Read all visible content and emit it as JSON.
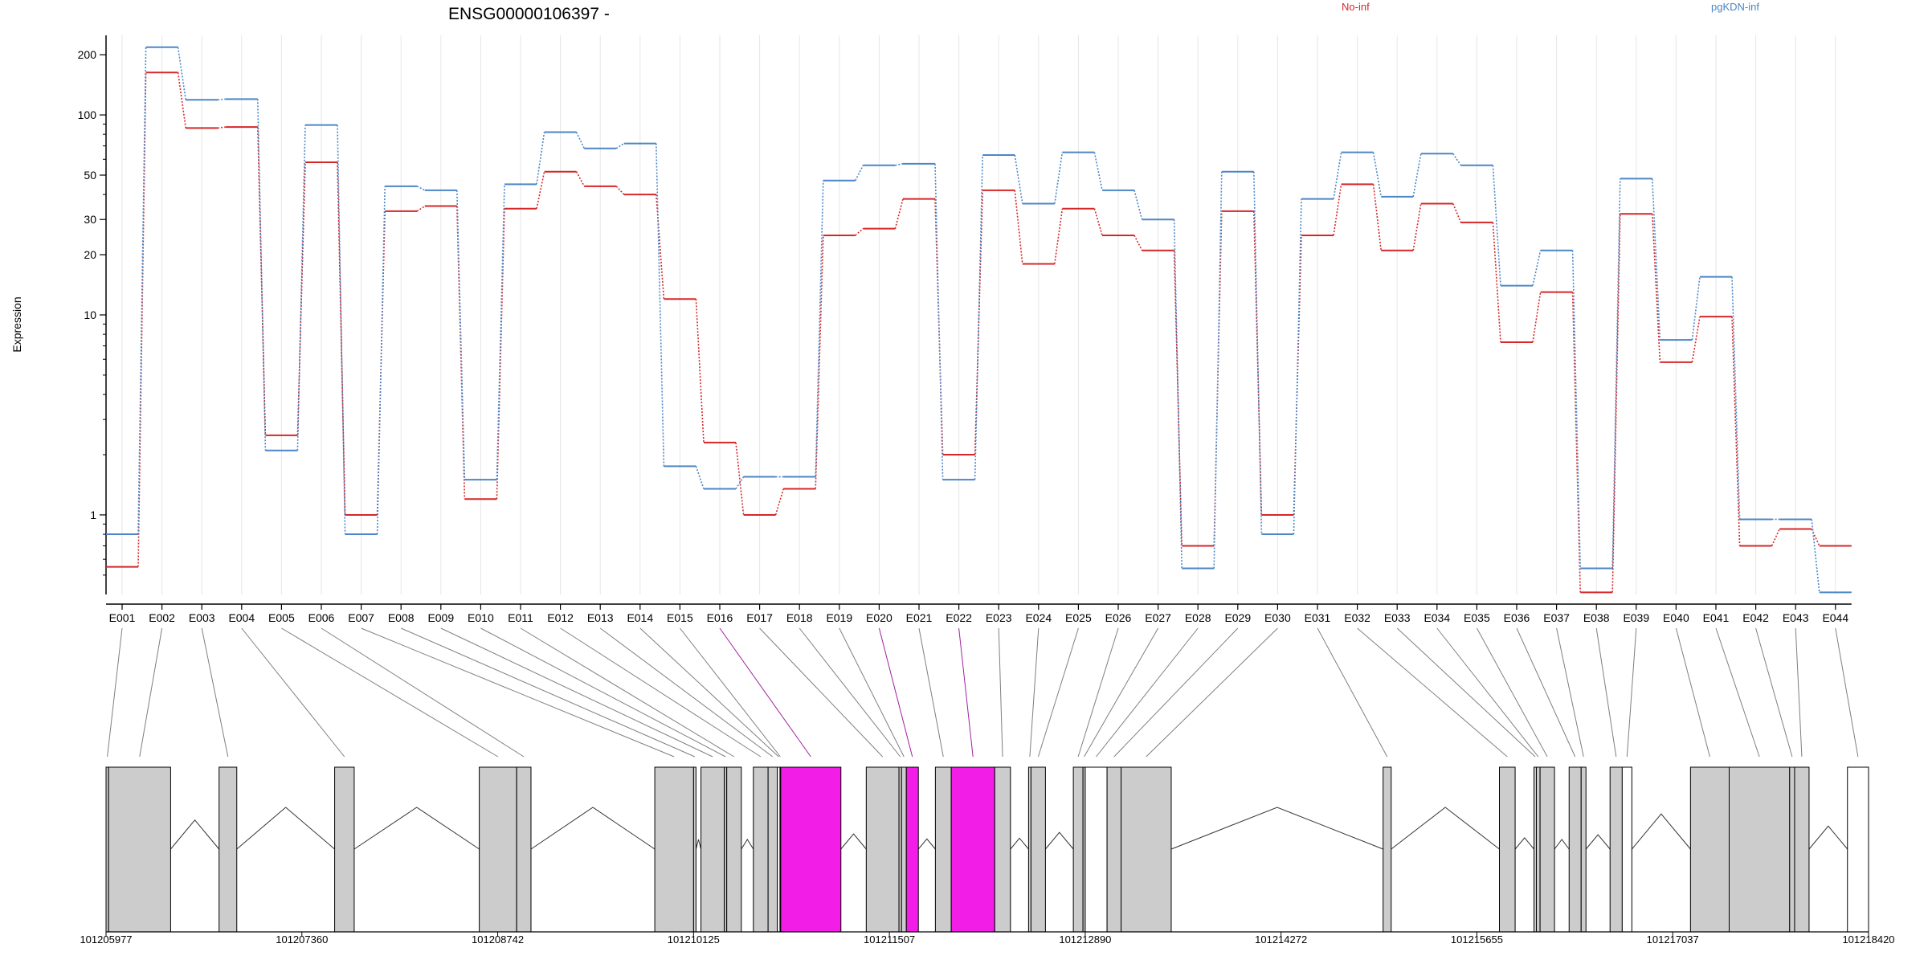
{
  "chart_data": {
    "type": "line",
    "title": "ENSG00000106397 -",
    "ylabel": "Expression",
    "yscale": "log",
    "ylim": [
      0.4,
      250
    ],
    "yticks": [
      {
        "value": 1,
        "label": "1"
      },
      {
        "value": 10,
        "label": "10"
      },
      {
        "value": 20,
        "label": "20"
      },
      {
        "value": 30,
        "label": "30"
      },
      {
        "value": 50,
        "label": "50"
      },
      {
        "value": 100,
        "label": "100"
      },
      {
        "value": 200,
        "label": "200"
      }
    ],
    "categories": [
      "E001",
      "E002",
      "E003",
      "E004",
      "E005",
      "E006",
      "E007",
      "E008",
      "E009",
      "E010",
      "E011",
      "E012",
      "E013",
      "E014",
      "E015",
      "E016",
      "E017",
      "E018",
      "E019",
      "E020",
      "E021",
      "E022",
      "E023",
      "E024",
      "E025",
      "E026",
      "E027",
      "E028",
      "E029",
      "E030",
      "E031",
      "E032",
      "E033",
      "E034",
      "E035",
      "E036",
      "E037",
      "E038",
      "E039",
      "E040",
      "E041",
      "E042",
      "E043",
      "E044"
    ],
    "legend_placement": "top-right",
    "series": [
      {
        "name": "No-inf",
        "color": "#d62728",
        "values": [
          0.55,
          163,
          86,
          87,
          2.5,
          58,
          1.0,
          33,
          35,
          1.2,
          34,
          52,
          44,
          40,
          12,
          2.3,
          1.0,
          1.35,
          25,
          27,
          38,
          2.0,
          42,
          18,
          34,
          25,
          21,
          0.7,
          33,
          1.0,
          25,
          45,
          21,
          36,
          29,
          7.3,
          13,
          0.41,
          32,
          5.8,
          9.8,
          0.7,
          0.85,
          0.7
        ]
      },
      {
        "name": "pgKDN-inf",
        "color": "#4c86c6",
        "values": [
          0.8,
          218,
          119,
          120,
          2.1,
          89,
          0.8,
          44,
          42,
          1.5,
          45,
          82,
          68,
          72,
          1.75,
          1.35,
          1.55,
          1.55,
          47,
          56,
          57,
          1.5,
          63,
          36,
          65,
          42,
          30,
          0.54,
          52,
          0.8,
          38,
          65,
          39,
          64,
          56,
          14,
          21,
          0.54,
          48,
          7.5,
          15.5,
          0.95,
          0.95,
          0.41
        ]
      }
    ],
    "highlighted_exons": [
      "E016",
      "E020",
      "E022"
    ]
  },
  "gene_model": {
    "coordinate_ticks": [
      "101205977",
      "101207360",
      "101208742",
      "101210125",
      "101211507",
      "101212890",
      "101214272",
      "101215655",
      "101217037",
      "101218420"
    ],
    "coord_start": 101205977,
    "coord_end": 101218420,
    "exons": [
      {
        "id": "E001",
        "start": 101205977,
        "end": 101205995,
        "fill": "#cccccc"
      },
      {
        "id": "E002",
        "start": 101205995,
        "end": 101206433,
        "fill": "#cccccc"
      },
      {
        "id": "E003",
        "start": 101206775,
        "end": 101206900,
        "fill": "#cccccc"
      },
      {
        "id": "E004",
        "start": 101207591,
        "end": 101207729,
        "fill": "#cccccc"
      },
      {
        "id": "E005",
        "start": 101208612,
        "end": 101208876,
        "fill": "#cccccc"
      },
      {
        "id": "E006",
        "start": 101208876,
        "end": 101208977,
        "fill": "#cccccc"
      },
      {
        "id": "E007",
        "start": 101209851,
        "end": 101210125,
        "fill": "#cccccc"
      },
      {
        "id": "E008",
        "start": 101210125,
        "end": 101210142,
        "fill": "#cccccc"
      },
      {
        "id": "E009",
        "start": 101210177,
        "end": 101210342,
        "fill": "#cccccc"
      },
      {
        "id": "E010",
        "start": 101210342,
        "end": 101210359,
        "fill": "#cccccc"
      },
      {
        "id": "E011",
        "start": 101210359,
        "end": 101210462,
        "fill": "#cccccc"
      },
      {
        "id": "E012",
        "start": 101210547,
        "end": 101210651,
        "fill": "#cccccc"
      },
      {
        "id": "E013",
        "start": 101210651,
        "end": 101210716,
        "fill": "#cccccc"
      },
      {
        "id": "E014",
        "start": 101210716,
        "end": 101210735,
        "fill": "#ffffff"
      },
      {
        "id": "E015",
        "start": 101210735,
        "end": 101210740,
        "fill": "#cccccc"
      },
      {
        "id": "E016",
        "start": 101210740,
        "end": 101211165,
        "fill": "#f21ee8"
      },
      {
        "id": "E017",
        "start": 101211344,
        "end": 101211575,
        "fill": "#cccccc"
      },
      {
        "id": "E018",
        "start": 101211575,
        "end": 101211593,
        "fill": "#cccccc"
      },
      {
        "id": "E019",
        "start": 101211593,
        "end": 101211627,
        "fill": "#cccccc"
      },
      {
        "id": "E020",
        "start": 101211627,
        "end": 101211712,
        "fill": "#f21ee8"
      },
      {
        "id": "E021",
        "start": 101211832,
        "end": 101211944,
        "fill": "#cccccc"
      },
      {
        "id": "E022",
        "start": 101211944,
        "end": 101212251,
        "fill": "#f21ee8"
      },
      {
        "id": "E023",
        "start": 101212251,
        "end": 101212362,
        "fill": "#cccccc"
      },
      {
        "id": "E024",
        "start": 101212490,
        "end": 101212507,
        "fill": "#cccccc"
      },
      {
        "id": "E025",
        "start": 101212507,
        "end": 101212609,
        "fill": "#cccccc"
      },
      {
        "id": "E026",
        "start": 101212806,
        "end": 101212874,
        "fill": "#cccccc"
      },
      {
        "id": "E027",
        "start": 101212874,
        "end": 101212890,
        "fill": "#cccccc"
      },
      {
        "id": "E028",
        "start": 101212890,
        "end": 101213044,
        "fill": "#ffffff"
      },
      {
        "id": "E029",
        "start": 101213044,
        "end": 101213143,
        "fill": "#cccccc"
      },
      {
        "id": "E030",
        "start": 101213143,
        "end": 101213497,
        "fill": "#cccccc"
      },
      {
        "id": "E031",
        "start": 101214993,
        "end": 101215050,
        "fill": "#cccccc"
      },
      {
        "id": "E032",
        "start": 101215814,
        "end": 101215925,
        "fill": "#cccccc"
      },
      {
        "id": "E033",
        "start": 101216058,
        "end": 101216075,
        "fill": "#cccccc"
      },
      {
        "id": "E034",
        "start": 101216075,
        "end": 101216101,
        "fill": "#cccccc"
      },
      {
        "id": "E035",
        "start": 101216101,
        "end": 101216203,
        "fill": "#cccccc"
      },
      {
        "id": "E036",
        "start": 101216306,
        "end": 101216391,
        "fill": "#cccccc"
      },
      {
        "id": "E037",
        "start": 101216391,
        "end": 101216425,
        "fill": "#cccccc"
      },
      {
        "id": "E038",
        "start": 101216595,
        "end": 101216681,
        "fill": "#cccccc"
      },
      {
        "id": "E039",
        "start": 101216681,
        "end": 101216749,
        "fill": "#ffffff"
      },
      {
        "id": "E040",
        "start": 101217163,
        "end": 101217436,
        "fill": "#cccccc"
      },
      {
        "id": "E041",
        "start": 101217436,
        "end": 101217863,
        "fill": "#cccccc"
      },
      {
        "id": "E042",
        "start": 101217863,
        "end": 101217898,
        "fill": "#cccccc"
      },
      {
        "id": "E043",
        "start": 101217898,
        "end": 101218000,
        "fill": "#cccccc"
      },
      {
        "id": "E044",
        "start": 101218271,
        "end": 101218420,
        "fill": "#ffffff"
      }
    ],
    "colors": {
      "exon_default": "#cccccc",
      "exon_highlight": "#f21ee8",
      "connector_line": "#7f7f7f",
      "connector_highlight": "#a020a0"
    }
  }
}
